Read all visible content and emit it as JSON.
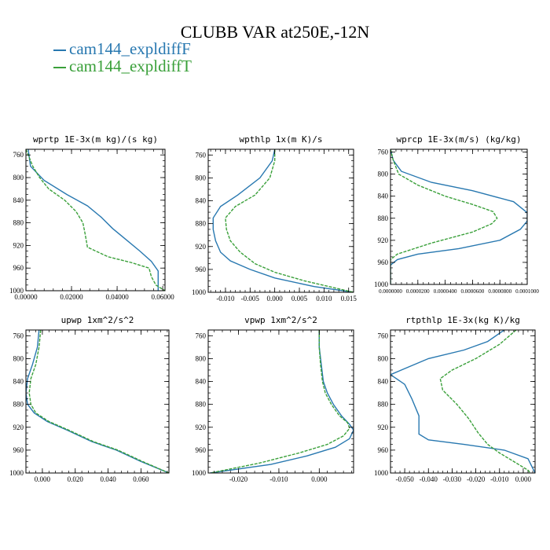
{
  "title": "CLUBB VAR at250E,-12N",
  "legend": [
    {
      "label": "cam144_expldiffF",
      "color": "#2878b0"
    },
    {
      "label": "cam144_expldiffT",
      "color": "#3aa03a"
    }
  ],
  "chart_data": [
    {
      "type": "line",
      "title": "wprtp  1E-3x(m kg)/(s kg)",
      "xlim": [
        0,
        0.061
      ],
      "xticks": [
        0.0,
        0.02,
        0.04,
        0.06
      ],
      "xtick_labels": [
        "0.00000",
        "0.02000",
        "0.04000",
        "0.06000"
      ],
      "ylim": [
        1000,
        750
      ],
      "yticks": [
        760,
        800,
        840,
        880,
        920,
        960,
        1000
      ],
      "ytick_labels": [
        "760",
        "800",
        "840",
        "880",
        "920",
        "960",
        "1000"
      ],
      "series": [
        {
          "color": "#2878b0",
          "dash": false,
          "points": [
            [
              0.001,
              750
            ],
            [
              0.002,
              780
            ],
            [
              0.008,
              805
            ],
            [
              0.018,
              830
            ],
            [
              0.027,
              850
            ],
            [
              0.033,
              870
            ],
            [
              0.038,
              890
            ],
            [
              0.044,
              910
            ],
            [
              0.05,
              930
            ],
            [
              0.055,
              948
            ],
            [
              0.058,
              965
            ],
            [
              0.058,
              985
            ],
            [
              0.058,
              1000
            ]
          ]
        },
        {
          "color": "#3aa03a",
          "dash": true,
          "points": [
            [
              0.0,
              750
            ],
            [
              0.003,
              780
            ],
            [
              0.006,
              800
            ],
            [
              0.01,
              820
            ],
            [
              0.017,
              840
            ],
            [
              0.022,
              860
            ],
            [
              0.025,
              880
            ],
            [
              0.026,
              900
            ],
            [
              0.027,
              923
            ],
            [
              0.036,
              940
            ],
            [
              0.046,
              950
            ],
            [
              0.054,
              960
            ],
            [
              0.055,
              975
            ],
            [
              0.057,
              990
            ],
            [
              0.061,
              1000
            ]
          ]
        }
      ]
    },
    {
      "type": "line",
      "title": "wpthlp  1x(m K)/s",
      "xlim": [
        -0.0135,
        0.016
      ],
      "xticks": [
        -0.01,
        -0.005,
        0.0,
        0.005,
        0.01,
        0.015
      ],
      "xtick_labels": [
        "-0.010",
        "-0.005",
        "0.000",
        "0.005",
        "0.010",
        "0.015"
      ],
      "ylim": [
        1000,
        750
      ],
      "yticks": [
        760,
        800,
        840,
        880,
        920,
        960,
        1000
      ],
      "ytick_labels": [
        "760",
        "800",
        "840",
        "880",
        "920",
        "960",
        "1000"
      ],
      "series": [
        {
          "color": "#2878b0",
          "dash": false,
          "points": [
            [
              0.0,
              750
            ],
            [
              -0.0005,
              770
            ],
            [
              -0.003,
              800
            ],
            [
              -0.0075,
              830
            ],
            [
              -0.011,
              850
            ],
            [
              -0.0125,
              870
            ],
            [
              -0.0125,
              890
            ],
            [
              -0.012,
              910
            ],
            [
              -0.011,
              930
            ],
            [
              -0.009,
              945
            ],
            [
              -0.005,
              960
            ],
            [
              0.0,
              975
            ],
            [
              0.008,
              990
            ],
            [
              0.016,
              1000
            ]
          ]
        },
        {
          "color": "#3aa03a",
          "dash": true,
          "points": [
            [
              0.0,
              750
            ],
            [
              0.0,
              770
            ],
            [
              -0.001,
              800
            ],
            [
              -0.004,
              830
            ],
            [
              -0.008,
              850
            ],
            [
              -0.01,
              870
            ],
            [
              -0.0098,
              890
            ],
            [
              -0.009,
              910
            ],
            [
              -0.007,
              930
            ],
            [
              -0.004,
              950
            ],
            [
              0.0,
              965
            ],
            [
              0.006,
              980
            ],
            [
              0.011,
              990
            ],
            [
              0.016,
              1000
            ]
          ]
        }
      ]
    },
    {
      "type": "line",
      "title": "wprcp  1E-3x(m/s) (kg/kg)",
      "xlim": [
        0,
        0.0001
      ],
      "xticks": [
        0.0,
        2e-05,
        4e-05,
        6e-05,
        8e-05,
        0.0001
      ],
      "xtick_labels": [
        "0.0000000",
        "0.0000200",
        "0.0000400",
        "0.0000600",
        "0.0000800",
        "0.0001000"
      ],
      "ylim": [
        1000,
        755
      ],
      "yticks": [
        760,
        800,
        840,
        880,
        920,
        960,
        1000
      ],
      "ytick_labels": [
        "760",
        "800",
        "840",
        "880",
        "920",
        "960",
        "1000"
      ],
      "series": [
        {
          "color": "#2878b0",
          "dash": false,
          "points": [
            [
              0.0,
              755
            ],
            [
              2e-06,
              775
            ],
            [
              8e-06,
              795
            ],
            [
              3e-05,
              815
            ],
            [
              6e-05,
              830
            ],
            [
              9e-05,
              850
            ],
            [
              0.0001,
              870
            ],
            [
              0.0001,
              885
            ],
            [
              9.5e-05,
              900
            ],
            [
              8e-05,
              920
            ],
            [
              5e-05,
              935
            ],
            [
              2e-05,
              945
            ],
            [
              5e-06,
              955
            ],
            [
              0.0,
              965
            ],
            [
              0.0,
              1000
            ]
          ]
        },
        {
          "color": "#3aa03a",
          "dash": true,
          "points": [
            [
              0.0,
              755
            ],
            [
              2e-06,
              775
            ],
            [
              6e-06,
              800
            ],
            [
              2e-05,
              820
            ],
            [
              4e-05,
              840
            ],
            [
              6e-05,
              855
            ],
            [
              7.5e-05,
              868
            ],
            [
              7.8e-05,
              880
            ],
            [
              7.4e-05,
              890
            ],
            [
              6e-05,
              905
            ],
            [
              3e-05,
              925
            ],
            [
              5e-06,
              945
            ],
            [
              0.0,
              955
            ],
            [
              0.0,
              1000
            ]
          ]
        }
      ]
    },
    {
      "type": "line",
      "title": "upwp  1xm^2/s^2",
      "xlim": [
        -0.01,
        0.077
      ],
      "xticks": [
        0.0,
        0.02,
        0.04,
        0.06
      ],
      "xtick_labels": [
        "0.000",
        "0.020",
        "0.040",
        "0.060"
      ],
      "ylim": [
        1000,
        750
      ],
      "yticks": [
        760,
        800,
        840,
        880,
        920,
        960,
        1000
      ],
      "ytick_labels": [
        "760",
        "800",
        "840",
        "880",
        "920",
        "960",
        "1000"
      ],
      "series": [
        {
          "color": "#2878b0",
          "dash": false,
          "points": [
            [
              -0.002,
              750
            ],
            [
              -0.003,
              780
            ],
            [
              -0.006,
              810
            ],
            [
              -0.009,
              835
            ],
            [
              -0.01,
              860
            ],
            [
              -0.009,
              880
            ],
            [
              -0.005,
              895
            ],
            [
              0.003,
              910
            ],
            [
              0.015,
              925
            ],
            [
              0.03,
              945
            ],
            [
              0.045,
              960
            ],
            [
              0.06,
              980
            ],
            [
              0.077,
              1000
            ]
          ]
        },
        {
          "color": "#3aa03a",
          "dash": true,
          "points": [
            [
              -0.001,
              750
            ],
            [
              -0.002,
              780
            ],
            [
              -0.004,
              810
            ],
            [
              -0.007,
              835
            ],
            [
              -0.008,
              860
            ],
            [
              -0.007,
              880
            ],
            [
              -0.004,
              895
            ],
            [
              0.004,
              910
            ],
            [
              0.016,
              925
            ],
            [
              0.031,
              945
            ],
            [
              0.046,
              960
            ],
            [
              0.061,
              980
            ],
            [
              0.077,
              1000
            ]
          ]
        }
      ]
    },
    {
      "type": "line",
      "title": "vpwp  1xm^2/s^2",
      "xlim": [
        -0.0275,
        0.0085
      ],
      "xticks": [
        -0.02,
        -0.01,
        0.0
      ],
      "xtick_labels": [
        "-0.020",
        "-0.010",
        "0.000"
      ],
      "ylim": [
        1000,
        750
      ],
      "yticks": [
        760,
        800,
        840,
        880,
        920,
        960,
        1000
      ],
      "ytick_labels": [
        "760",
        "800",
        "840",
        "880",
        "920",
        "960",
        "1000"
      ],
      "series": [
        {
          "color": "#2878b0",
          "dash": false,
          "points": [
            [
              0.0,
              750
            ],
            [
              0.0,
              780
            ],
            [
              0.0005,
              810
            ],
            [
              0.001,
              840
            ],
            [
              0.002,
              860
            ],
            [
              0.0035,
              880
            ],
            [
              0.0055,
              900
            ],
            [
              0.0075,
              915
            ],
            [
              0.0085,
              925
            ],
            [
              0.0075,
              940
            ],
            [
              0.004,
              955
            ],
            [
              -0.003,
              970
            ],
            [
              -0.012,
              985
            ],
            [
              -0.027,
              1000
            ]
          ]
        },
        {
          "color": "#3aa03a",
          "dash": true,
          "points": [
            [
              0.0,
              750
            ],
            [
              0.0,
              780
            ],
            [
              0.0003,
              810
            ],
            [
              0.0008,
              840
            ],
            [
              0.0015,
              860
            ],
            [
              0.003,
              880
            ],
            [
              0.005,
              900
            ],
            [
              0.007,
              912
            ],
            [
              0.0075,
              922
            ],
            [
              0.006,
              935
            ],
            [
              0.002,
              950
            ],
            [
              -0.005,
              965
            ],
            [
              -0.015,
              983
            ],
            [
              -0.027,
              1000
            ]
          ]
        }
      ]
    },
    {
      "type": "line",
      "title": "rtpthlp  1E-3x(kg K)/kg",
      "xlim": [
        -0.056,
        0.005
      ],
      "xticks": [
        -0.05,
        -0.04,
        -0.03,
        -0.02,
        -0.01,
        0.0
      ],
      "xtick_labels": [
        "-0.050",
        "-0.040",
        "-0.030",
        "-0.020",
        "-0.010",
        "0.000"
      ],
      "ylim": [
        1000,
        750
      ],
      "yticks": [
        760,
        800,
        840,
        880,
        920,
        960,
        1000
      ],
      "ytick_labels": [
        "760",
        "800",
        "840",
        "880",
        "920",
        "960",
        "1000"
      ],
      "series": [
        {
          "color": "#2878b0",
          "dash": false,
          "points": [
            [
              -0.008,
              750
            ],
            [
              -0.015,
              770
            ],
            [
              -0.025,
              785
            ],
            [
              -0.04,
              800
            ],
            [
              -0.056,
              828
            ],
            [
              -0.05,
              845
            ],
            [
              -0.047,
              870
            ],
            [
              -0.044,
              900
            ],
            [
              -0.044,
              920
            ],
            [
              -0.044,
              932
            ],
            [
              -0.04,
              942
            ],
            [
              -0.025,
              950
            ],
            [
              -0.008,
              960
            ],
            [
              0.002,
              975
            ],
            [
              0.005,
              1000
            ]
          ]
        },
        {
          "color": "#3aa03a",
          "dash": true,
          "points": [
            [
              -0.003,
              750
            ],
            [
              -0.01,
              775
            ],
            [
              -0.02,
              800
            ],
            [
              -0.03,
              820
            ],
            [
              -0.035,
              835
            ],
            [
              -0.034,
              855
            ],
            [
              -0.028,
              880
            ],
            [
              -0.023,
              905
            ],
            [
              -0.019,
              930
            ],
            [
              -0.015,
              950
            ],
            [
              -0.01,
              965
            ],
            [
              -0.004,
              980
            ],
            [
              0.002,
              995
            ],
            [
              0.003,
              1000
            ]
          ]
        }
      ]
    }
  ]
}
